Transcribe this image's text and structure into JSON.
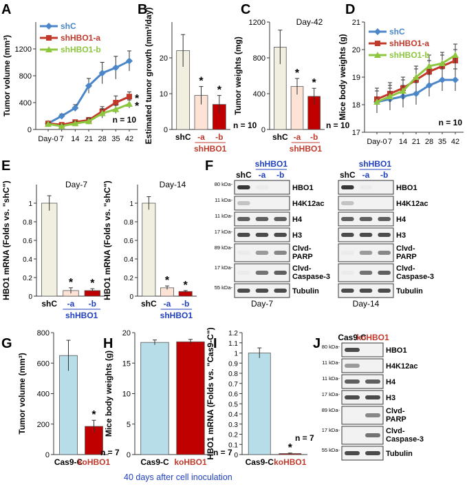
{
  "colors": {
    "blue": "#4a86c8",
    "red": "#c0392b",
    "green": "#8dc63f",
    "beige": "#f1efe0",
    "peach": "#fde3d6",
    "darkred": "#c00000",
    "lightblue": "#b7dde8",
    "navy": "#1f3fbf"
  },
  "panel_labels": {
    "A": "A",
    "B": "B",
    "C": "C",
    "D": "D",
    "E": "E",
    "F": "F",
    "G": "G",
    "H": "H",
    "I": "I",
    "J": "J"
  },
  "chart_data": [
    {
      "id": "A",
      "type": "line",
      "ylabel": "Tumor volume (mm³)",
      "x": [
        "Day-0",
        "7",
        "14",
        "21",
        "28",
        "35",
        "42"
      ],
      "ylim": [
        0,
        1600
      ],
      "yticks": [
        "0",
        "400",
        "800",
        "1200"
      ],
      "ytick_values": [
        0,
        400,
        800,
        1200
      ],
      "legend": [
        "shC",
        "shHBO1-a",
        "shHBO1-b"
      ],
      "series": [
        {
          "name": "shC",
          "values": [
            90,
            200,
            320,
            650,
            840,
            920,
            1020
          ],
          "err": [
            20,
            30,
            50,
            110,
            160,
            170,
            150
          ]
        },
        {
          "name": "shHBO1-a",
          "values": [
            90,
            70,
            110,
            140,
            270,
            400,
            490
          ],
          "err": [
            20,
            20,
            30,
            40,
            70,
            100,
            70
          ]
        },
        {
          "name": "shHBO1-b",
          "values": [
            80,
            50,
            90,
            120,
            240,
            300,
            380
          ],
          "err": [
            20,
            20,
            30,
            40,
            70,
            60,
            60
          ]
        }
      ],
      "markers": [
        "*",
        "*"
      ],
      "n_label": "n = 10"
    },
    {
      "id": "B",
      "type": "bar",
      "ylabel": "Estimated tumor growth (mm³/day)",
      "categories": [
        "shC",
        "-a",
        "-b"
      ],
      "group_label": "shHBO1",
      "values": [
        22,
        9.5,
        7
      ],
      "err": [
        4.5,
        2.5,
        2.5
      ],
      "ylim": [
        0,
        30
      ],
      "yticks": [
        "0",
        "10",
        "20"
      ],
      "ytick_values": [
        0,
        10,
        20
      ],
      "markers": [
        "",
        "*",
        "*"
      ],
      "n_label": "n = 10"
    },
    {
      "id": "C",
      "type": "bar",
      "title": "Day-42",
      "ylabel": "Tumor weights (mg)",
      "categories": [
        "shC",
        "-a",
        "-b"
      ],
      "group_label": "shHBO1",
      "values": [
        920,
        480,
        370
      ],
      "err": [
        190,
        90,
        90
      ],
      "ylim": [
        0,
        1200
      ],
      "yticks": [
        "0",
        "400",
        "800",
        "1200"
      ],
      "ytick_values": [
        0,
        400,
        800,
        1200
      ],
      "markers": [
        "",
        "*",
        "*"
      ],
      "n_label": "n = 10"
    },
    {
      "id": "D",
      "type": "line",
      "ylabel": "Mice body weights (g)",
      "x": [
        "Day-0",
        "7",
        "14",
        "21",
        "28",
        "35",
        "42"
      ],
      "ylim": [
        17,
        21
      ],
      "yticks": [
        "17",
        "18",
        "19",
        "20",
        "21"
      ],
      "ytick_values": [
        17,
        18,
        19,
        20,
        21
      ],
      "legend": [
        "shC",
        "shHBO1-a",
        "shHBO1-b"
      ],
      "series": [
        {
          "name": "shC",
          "values": [
            18.1,
            18.2,
            18.3,
            18.4,
            18.7,
            18.9,
            18.9
          ],
          "err": [
            0.4,
            0.4,
            0.4,
            0.4,
            0.4,
            0.4,
            0.4
          ]
        },
        {
          "name": "shHBO1-a",
          "values": [
            18.2,
            18.4,
            18.6,
            18.9,
            19.2,
            19.4,
            19.6
          ],
          "err": [
            0.4,
            0.4,
            0.4,
            0.4,
            0.4,
            0.4,
            0.4
          ]
        },
        {
          "name": "shHBO1-b",
          "values": [
            18.1,
            18.3,
            18.5,
            19.0,
            19.4,
            19.5,
            19.8
          ],
          "err": [
            0.4,
            0.4,
            0.4,
            0.4,
            0.4,
            0.4,
            0.4
          ]
        }
      ],
      "n_label": "n = 10"
    },
    {
      "id": "E1",
      "type": "bar",
      "title": "Day-7",
      "ylabel": "HBO1 mRNA (Folds vs. \"shC\")",
      "categories": [
        "shC",
        "-a",
        "-b"
      ],
      "group_label": "shHBO1",
      "values": [
        1.0,
        0.06,
        0.06
      ],
      "err": [
        0.08,
        0.03,
        0.02
      ],
      "ylim": [
        0,
        1.2
      ],
      "yticks": [
        "0",
        "0.2",
        "0.4",
        "0.6",
        "0.8",
        "1"
      ],
      "ytick_values": [
        0,
        0.2,
        0.4,
        0.6,
        0.8,
        1
      ],
      "markers": [
        "",
        "*",
        "*"
      ]
    },
    {
      "id": "E2",
      "type": "bar",
      "title": "Day-14",
      "ylabel": "HBO1 mRNA (Folds vs. \"shC\")",
      "categories": [
        "shC",
        "-a",
        "-b"
      ],
      "group_label": "shHBO1",
      "values": [
        1.0,
        0.09,
        0.05
      ],
      "err": [
        0.07,
        0.02,
        0.01
      ],
      "ylim": [
        0,
        1.2
      ],
      "yticks": [
        "0",
        "0.2",
        "0.4",
        "0.6",
        "0.8",
        "1"
      ],
      "ytick_values": [
        0,
        0.2,
        0.4,
        0.6,
        0.8,
        1
      ],
      "markers": [
        "",
        "*",
        "*"
      ]
    },
    {
      "id": "G",
      "type": "bar",
      "ylabel": "Tumor volume (mm³)",
      "categories": [
        "Cas9-C",
        "koHBO1"
      ],
      "values": [
        650,
        185
      ],
      "err": [
        100,
        40
      ],
      "ylim": [
        0,
        800
      ],
      "yticks": [
        "0",
        "200",
        "400",
        "600",
        "800"
      ],
      "ytick_values": [
        0,
        200,
        400,
        600,
        800
      ],
      "markers": [
        "",
        "*"
      ],
      "n_label": "n = 7"
    },
    {
      "id": "H",
      "type": "bar",
      "ylabel": "Mice body weights (g)",
      "categories": [
        "Cas9-C",
        "koHBO1"
      ],
      "values": [
        18.4,
        18.5
      ],
      "err": [
        0.4,
        0.4
      ],
      "ylim": [
        0,
        20
      ],
      "yticks": [
        "0",
        "5",
        "10",
        "15",
        "20"
      ],
      "ytick_values": [
        0,
        5,
        10,
        15,
        20
      ],
      "n_label": "n = 7"
    },
    {
      "id": "I",
      "type": "bar",
      "ylabel": "HBO1 mRNA (Folds vs. \"Cas9-C\")",
      "categories": [
        "Cas9-C",
        "koHBO1"
      ],
      "values": [
        1.0,
        0.01
      ],
      "err": [
        0.05,
        0.005
      ],
      "ylim": [
        0,
        1.2
      ],
      "yticks": [
        "0",
        "0.1",
        "0.2",
        "0.3",
        "0.4",
        "0.5",
        "0.6",
        "0.7",
        "0.8",
        "0.9",
        "1",
        "1.1",
        "1.2"
      ],
      "ytick_values": [
        0,
        0.1,
        0.2,
        0.3,
        0.4,
        0.5,
        0.6,
        0.7,
        0.8,
        0.9,
        1.0,
        1.1,
        1.2
      ],
      "markers": [
        "",
        "*"
      ],
      "n_label": "n = 7"
    }
  ],
  "caption_GH": "40 days after cell inoculation",
  "blots": {
    "F_header_group": "shHBO1",
    "F_lanes": [
      "shC",
      "-a",
      "-b"
    ],
    "F_rows": [
      {
        "kda": "80 kDa-",
        "label": "HBO1"
      },
      {
        "kda": "11 kDa-",
        "label": "H4K12ac"
      },
      {
        "kda": "11 kDa-",
        "label": "H4"
      },
      {
        "kda": "17 kDa-",
        "label": "H3"
      },
      {
        "kda": "89 kDa-",
        "label": "Clvd-\nPARP"
      },
      {
        "kda": "17 kDa-",
        "label": "Clvd-\nCaspase-3"
      },
      {
        "kda": "55 kDa-",
        "label": "Tubulin"
      }
    ],
    "F_left_caption": "Day-7",
    "F_right_caption": "Day-14",
    "J_lanes": [
      "Cas9-C",
      "koHBO1"
    ],
    "J_rows": [
      {
        "kda": "80 kDa-",
        "label": "HBO1"
      },
      {
        "kda": "11 kDa-",
        "label": "H4K12ac"
      },
      {
        "kda": "11 kDa-",
        "label": "H4"
      },
      {
        "kda": "17 kDa-",
        "label": "H3"
      },
      {
        "kda": "89 kDa-",
        "label": "Clvd-\nPARP"
      },
      {
        "kda": "17 kDa-",
        "label": "Clvd-\nCaspase-3"
      },
      {
        "kda": "55 kDa-",
        "label": "Tubulin"
      }
    ]
  }
}
